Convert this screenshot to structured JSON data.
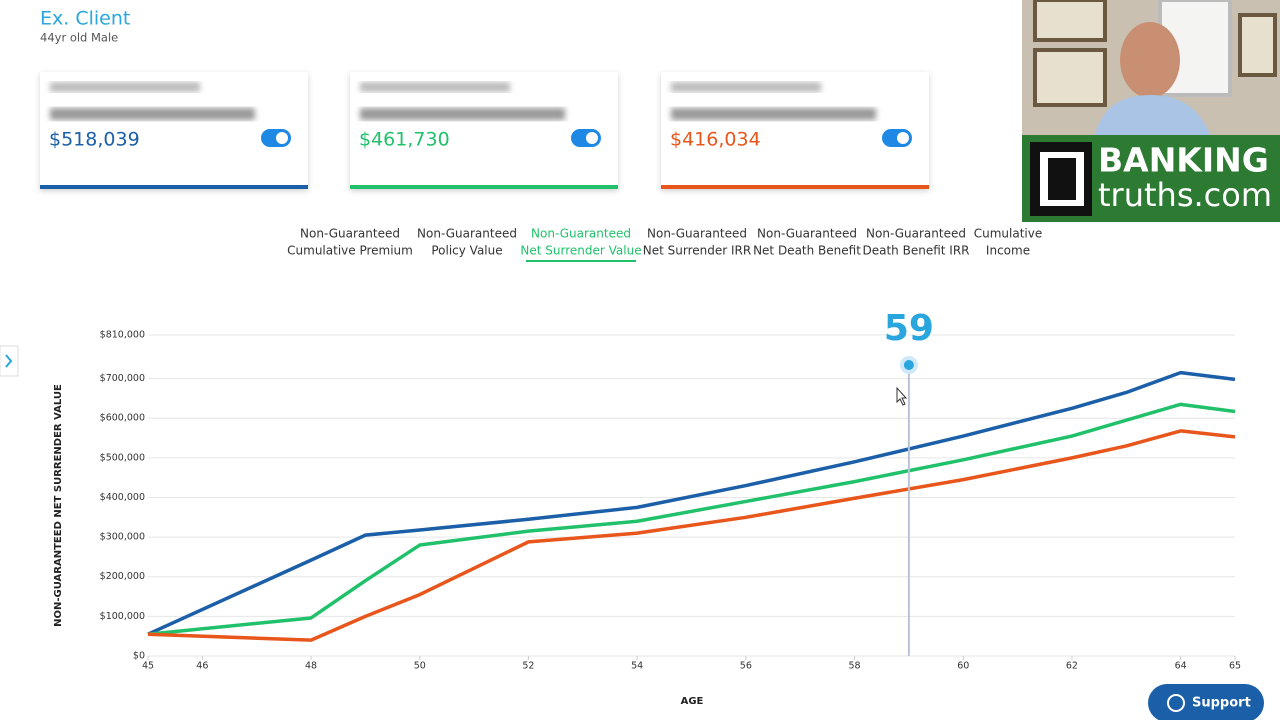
{
  "header": {
    "title": "Ex. Client",
    "subtitle": "44yr old Male"
  },
  "cards": [
    {
      "value": "$518,039",
      "color": "#1a5fa8",
      "enabled": true
    },
    {
      "value": "$461,730",
      "color": "#21c16b",
      "enabled": true
    },
    {
      "value": "$416,034",
      "color": "#e8561b",
      "enabled": true
    }
  ],
  "tabs": [
    {
      "line1": "Non-Guaranteed",
      "line2": "Cumulative Premium"
    },
    {
      "line1": "Non-Guaranteed",
      "line2": "Policy Value"
    },
    {
      "line1": "Non-Guaranteed",
      "line2": "Net Surrender Value"
    },
    {
      "line1": "Non-Guaranteed",
      "line2": "Net Surrender IRR"
    },
    {
      "line1": "Non-Guaranteed",
      "line2": "Net Death Benefit"
    },
    {
      "line1": "Non-Guaranteed",
      "line2": "Death Benefit IRR"
    },
    {
      "line1": "Cumulative",
      "line2": "Income"
    }
  ],
  "active_tab": 2,
  "chart_data": {
    "type": "line",
    "y_label": "NON-GUARANTEED NET SURRENDER VALUE",
    "x_label": "AGE",
    "marker": {
      "value": 59
    },
    "x": [
      45,
      48,
      49,
      50,
      52,
      54,
      56,
      58,
      60,
      62,
      63,
      64,
      65
    ],
    "series": [
      {
        "color": "#1a5fa8",
        "values": [
          55000,
          242000,
          305000,
          318000,
          345000,
          375000,
          430000,
          490000,
          555000,
          625000,
          665000,
          715000,
          698000
        ]
      },
      {
        "color": "#21c16b",
        "values": [
          55000,
          96000,
          190000,
          280000,
          315000,
          340000,
          390000,
          440000,
          495000,
          555000,
          595000,
          635000,
          617000
        ]
      },
      {
        "color": "#e8561b",
        "values": [
          55000,
          40000,
          100000,
          155000,
          288000,
          310000,
          350000,
          398000,
          445000,
          500000,
          530000,
          568000,
          553000
        ]
      }
    ],
    "xlim": [
      45,
      65
    ],
    "xticks": [
      45,
      46,
      48,
      50,
      52,
      54,
      56,
      58,
      60,
      62,
      64,
      65
    ],
    "ylim": [
      0,
      810000
    ],
    "yticks": [
      {
        "value": 0,
        "label": "$0"
      },
      {
        "value": 100000,
        "label": "$100,000"
      },
      {
        "value": 200000,
        "label": "$200,000"
      },
      {
        "value": 300000,
        "label": "$300,000"
      },
      {
        "value": 400000,
        "label": "$400,000"
      },
      {
        "value": 500000,
        "label": "$500,000"
      },
      {
        "value": 600000,
        "label": "$600,000"
      },
      {
        "value": 700000,
        "label": "$700,000"
      },
      {
        "value": 810000,
        "label": "$810,000"
      }
    ],
    "grid": true
  },
  "overlay": {
    "brand_line1": "BANKING",
    "brand_line2": "truths.com"
  },
  "support": {
    "label": "Support"
  }
}
